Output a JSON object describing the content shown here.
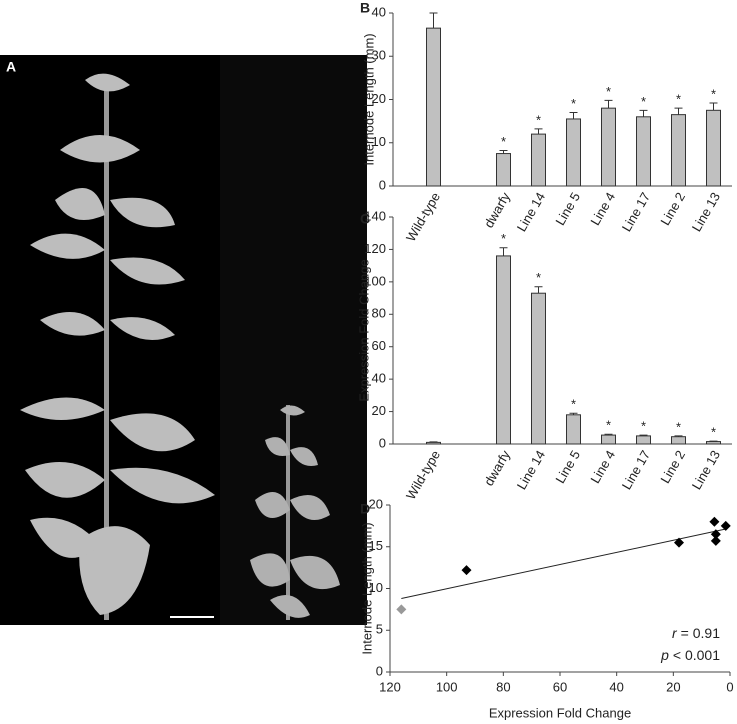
{
  "panel_a": {
    "label": "A"
  },
  "chart_data": [
    {
      "type": "bar",
      "panel": "B",
      "ylabel": "Internode Length (mm)",
      "categories": [
        "Wild-type",
        null,
        "dwarfy",
        "Line 14",
        "Line 5",
        "Line 4",
        "Line 17",
        "Line 2",
        "Line 13"
      ],
      "values": [
        36.5,
        null,
        7.5,
        12,
        15.5,
        18,
        16,
        16.5,
        17.5
      ],
      "errors": [
        3.5,
        null,
        0.7,
        1.2,
        1.5,
        1.8,
        1.5,
        1.5,
        1.7
      ],
      "significant": [
        false,
        null,
        true,
        true,
        true,
        true,
        true,
        true,
        true
      ],
      "sig_marker": "*",
      "color": "#c0c0c0",
      "ylim": [
        0,
        40
      ],
      "yticks": [
        0,
        10,
        20,
        30,
        40
      ]
    },
    {
      "type": "bar",
      "panel": "C",
      "ylabel": "Expression Fold Change",
      "categories": [
        "Wild-type",
        null,
        "dwarfy",
        "Line 14",
        "Line 5",
        "Line 4",
        "Line 17",
        "Line 2",
        "Line 13"
      ],
      "values": [
        1,
        null,
        116,
        93,
        18,
        5.5,
        5,
        4.5,
        1.5
      ],
      "errors": [
        0.3,
        null,
        5,
        4,
        1,
        0.5,
        0.5,
        0.5,
        0.3
      ],
      "significant": [
        false,
        null,
        true,
        true,
        true,
        true,
        true,
        true,
        true
      ],
      "sig_marker": "*",
      "color": "#c0c0c0",
      "ylim": [
        0,
        140
      ],
      "yticks": [
        0,
        20,
        40,
        60,
        80,
        100,
        120,
        140
      ]
    },
    {
      "type": "scatter",
      "panel": "D",
      "xlabel": "Expression Fold Change",
      "ylabel": "Internode Length (mm)",
      "x": [
        116,
        93,
        18,
        5.5,
        5,
        5,
        1.5
      ],
      "y": [
        7.5,
        12.2,
        15.5,
        18,
        16.5,
        15.7,
        17.5
      ],
      "colors": [
        "#999999",
        "#000000",
        "#000000",
        "#000000",
        "#000000",
        "#000000",
        "#000000"
      ],
      "xlim": [
        120,
        0
      ],
      "xticks": [
        120,
        100,
        80,
        60,
        40,
        20,
        0
      ],
      "ylim": [
        0,
        20
      ],
      "yticks": [
        0,
        5,
        10,
        15,
        20
      ],
      "trendline": true,
      "r_label": "r",
      "r_value": "= 0.91",
      "p_label": "p",
      "p_value": "< 0.001"
    }
  ]
}
